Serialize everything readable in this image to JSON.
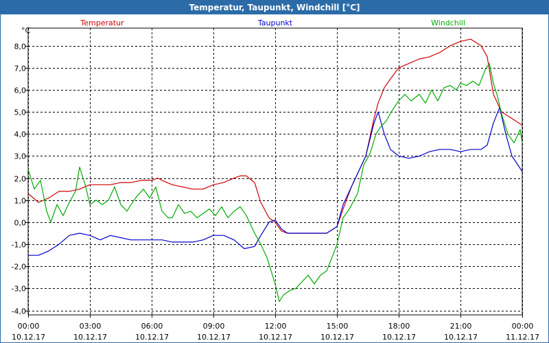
{
  "window": {
    "title": "Temperatur, Taupunkt, Windchill [°C]"
  },
  "chart_data": {
    "type": "line",
    "title": "Temperatur, Taupunkt, Windchill [°C]",
    "ylabel": "°C",
    "ylim": [
      -4.2,
      8.8
    ],
    "yticks": [
      -4,
      -3,
      -2,
      -1,
      0,
      1,
      2,
      3,
      4,
      5,
      6,
      7,
      8
    ],
    "ytick_labels": [
      "-4,0",
      "-3,0",
      "-2,0",
      "-1,0",
      "0,0",
      "1,0",
      "2,0",
      "3,0",
      "4,0",
      "5,0",
      "6,0",
      "7,0",
      "8,0"
    ],
    "xlim": [
      0,
      24
    ],
    "xticks": [
      0,
      3,
      6,
      9,
      12,
      15,
      18,
      21,
      24
    ],
    "xtick_labels": [
      [
        "00:00",
        "10.12.17"
      ],
      [
        "03:00",
        "10.12.17"
      ],
      [
        "06:00",
        "10.12.17"
      ],
      [
        "09:00",
        "10.12.17"
      ],
      [
        "12:00",
        "10.12.17"
      ],
      [
        "15:00",
        "10.12.17"
      ],
      [
        "18:00",
        "10.12.17"
      ],
      [
        "21:00",
        "10.12.17"
      ],
      [
        "00:00",
        "11.12.17"
      ]
    ],
    "grid": true,
    "legend": "top",
    "series": [
      {
        "name": "Temperatur",
        "color": "#cc0000",
        "points": [
          [
            0,
            1.3
          ],
          [
            0.5,
            0.9
          ],
          [
            1,
            1.1
          ],
          [
            1.5,
            1.4
          ],
          [
            2,
            1.4
          ],
          [
            2.5,
            1.5
          ],
          [
            3,
            1.7
          ],
          [
            3.5,
            1.7
          ],
          [
            4,
            1.7
          ],
          [
            4.5,
            1.8
          ],
          [
            5,
            1.8
          ],
          [
            5.5,
            1.9
          ],
          [
            6,
            1.9
          ],
          [
            6.3,
            2.0
          ],
          [
            6.5,
            1.9
          ],
          [
            7,
            1.7
          ],
          [
            7.5,
            1.6
          ],
          [
            8,
            1.5
          ],
          [
            8.5,
            1.5
          ],
          [
            9,
            1.7
          ],
          [
            9.5,
            1.8
          ],
          [
            10,
            2.0
          ],
          [
            10.3,
            2.1
          ],
          [
            10.6,
            2.1
          ],
          [
            11,
            1.8
          ],
          [
            11.3,
            0.9
          ],
          [
            11.7,
            0.2
          ],
          [
            12,
            0.0
          ],
          [
            12.3,
            -0.4
          ],
          [
            12.6,
            -0.5
          ],
          [
            13,
            -0.5
          ],
          [
            13.5,
            -0.5
          ],
          [
            14,
            -0.5
          ],
          [
            14.5,
            -0.5
          ],
          [
            15,
            -0.2
          ],
          [
            15.3,
            0.6
          ],
          [
            15.7,
            1.6
          ],
          [
            16,
            2.2
          ],
          [
            16.4,
            3.0
          ],
          [
            16.8,
            4.7
          ],
          [
            17,
            5.4
          ],
          [
            17.3,
            6.1
          ],
          [
            17.6,
            6.5
          ],
          [
            18,
            7.0
          ],
          [
            18.5,
            7.2
          ],
          [
            19,
            7.4
          ],
          [
            19.5,
            7.5
          ],
          [
            20,
            7.7
          ],
          [
            20.5,
            8.0
          ],
          [
            21,
            8.2
          ],
          [
            21.5,
            8.3
          ],
          [
            22,
            8.0
          ],
          [
            22.3,
            7.5
          ],
          [
            22.6,
            5.8
          ],
          [
            23,
            5.0
          ],
          [
            23.5,
            4.7
          ],
          [
            24,
            4.4
          ]
        ]
      },
      {
        "name": "Taupunkt",
        "color": "#0000cc",
        "points": [
          [
            0,
            -1.5
          ],
          [
            0.5,
            -1.5
          ],
          [
            1,
            -1.3
          ],
          [
            1.5,
            -1.0
          ],
          [
            2,
            -0.6
          ],
          [
            2.5,
            -0.5
          ],
          [
            3,
            -0.6
          ],
          [
            3.5,
            -0.8
          ],
          [
            4,
            -0.6
          ],
          [
            4.5,
            -0.7
          ],
          [
            5,
            -0.8
          ],
          [
            5.5,
            -0.8
          ],
          [
            6,
            -0.8
          ],
          [
            6.5,
            -0.8
          ],
          [
            7,
            -0.9
          ],
          [
            7.5,
            -0.9
          ],
          [
            8,
            -0.9
          ],
          [
            8.5,
            -0.8
          ],
          [
            9,
            -0.6
          ],
          [
            9.5,
            -0.6
          ],
          [
            10,
            -0.8
          ],
          [
            10.5,
            -1.2
          ],
          [
            11,
            -1.1
          ],
          [
            11.3,
            -0.6
          ],
          [
            11.7,
            0.0
          ],
          [
            12,
            0.1
          ],
          [
            12.3,
            -0.3
          ],
          [
            12.6,
            -0.5
          ],
          [
            13,
            -0.5
          ],
          [
            13.5,
            -0.5
          ],
          [
            14,
            -0.5
          ],
          [
            14.5,
            -0.5
          ],
          [
            15,
            -0.2
          ],
          [
            15.3,
            0.8
          ],
          [
            15.7,
            1.6
          ],
          [
            16,
            2.2
          ],
          [
            16.4,
            3.0
          ],
          [
            16.8,
            4.5
          ],
          [
            17,
            5.0
          ],
          [
            17.3,
            4.0
          ],
          [
            17.6,
            3.3
          ],
          [
            18,
            3.0
          ],
          [
            18.5,
            2.9
          ],
          [
            19,
            3.0
          ],
          [
            19.5,
            3.2
          ],
          [
            20,
            3.3
          ],
          [
            20.5,
            3.3
          ],
          [
            21,
            3.2
          ],
          [
            21.5,
            3.3
          ],
          [
            22,
            3.3
          ],
          [
            22.3,
            3.5
          ],
          [
            22.6,
            4.5
          ],
          [
            22.9,
            5.2
          ],
          [
            23.2,
            4.0
          ],
          [
            23.5,
            3.0
          ],
          [
            24,
            2.3
          ]
        ]
      },
      {
        "name": "Windchill",
        "color": "#00aa00",
        "points": [
          [
            0,
            2.4
          ],
          [
            0.3,
            1.5
          ],
          [
            0.6,
            1.9
          ],
          [
            0.9,
            0.5
          ],
          [
            1.1,
            0.0
          ],
          [
            1.4,
            0.8
          ],
          [
            1.7,
            0.3
          ],
          [
            2,
            0.9
          ],
          [
            2.3,
            1.4
          ],
          [
            2.5,
            2.5
          ],
          [
            2.8,
            1.6
          ],
          [
            3,
            0.8
          ],
          [
            3.3,
            1.0
          ],
          [
            3.6,
            0.8
          ],
          [
            3.9,
            1.0
          ],
          [
            4.2,
            1.6
          ],
          [
            4.5,
            0.8
          ],
          [
            4.8,
            0.5
          ],
          [
            5,
            0.8
          ],
          [
            5.3,
            1.2
          ],
          [
            5.6,
            1.5
          ],
          [
            5.9,
            1.1
          ],
          [
            6.2,
            1.6
          ],
          [
            6.5,
            0.5
          ],
          [
            6.8,
            0.2
          ],
          [
            7,
            0.2
          ],
          [
            7.3,
            0.8
          ],
          [
            7.6,
            0.4
          ],
          [
            7.9,
            0.5
          ],
          [
            8.2,
            0.2
          ],
          [
            8.5,
            0.4
          ],
          [
            8.8,
            0.6
          ],
          [
            9.1,
            0.3
          ],
          [
            9.4,
            0.7
          ],
          [
            9.7,
            0.2
          ],
          [
            10,
            0.5
          ],
          [
            10.3,
            0.7
          ],
          [
            10.6,
            0.3
          ],
          [
            11,
            -0.5
          ],
          [
            11.3,
            -1.0
          ],
          [
            11.6,
            -1.6
          ],
          [
            12,
            -2.8
          ],
          [
            12.2,
            -3.6
          ],
          [
            12.4,
            -3.3
          ],
          [
            12.7,
            -3.1
          ],
          [
            13,
            -3.0
          ],
          [
            13.3,
            -2.7
          ],
          [
            13.6,
            -2.4
          ],
          [
            13.9,
            -2.8
          ],
          [
            14.2,
            -2.4
          ],
          [
            14.5,
            -2.2
          ],
          [
            14.8,
            -1.5
          ],
          [
            15,
            -1.0
          ],
          [
            15.3,
            0.2
          ],
          [
            15.6,
            0.6
          ],
          [
            16,
            1.3
          ],
          [
            16.3,
            2.6
          ],
          [
            16.6,
            3.1
          ],
          [
            16.9,
            4.0
          ],
          [
            17.1,
            4.3
          ],
          [
            17.4,
            4.6
          ],
          [
            17.7,
            5.1
          ],
          [
            18,
            5.5
          ],
          [
            18.3,
            5.8
          ],
          [
            18.6,
            5.5
          ],
          [
            19,
            5.8
          ],
          [
            19.3,
            5.4
          ],
          [
            19.6,
            6.0
          ],
          [
            19.9,
            5.5
          ],
          [
            20.2,
            6.1
          ],
          [
            20.5,
            6.2
          ],
          [
            20.8,
            6.0
          ],
          [
            21,
            6.3
          ],
          [
            21.3,
            6.2
          ],
          [
            21.6,
            6.4
          ],
          [
            21.9,
            6.2
          ],
          [
            22.2,
            6.9
          ],
          [
            22.4,
            7.2
          ],
          [
            22.6,
            6.3
          ],
          [
            22.8,
            5.7
          ],
          [
            23,
            4.9
          ],
          [
            23.3,
            4.0
          ],
          [
            23.6,
            3.6
          ],
          [
            23.9,
            4.2
          ],
          [
            24,
            3.6
          ]
        ]
      }
    ]
  }
}
